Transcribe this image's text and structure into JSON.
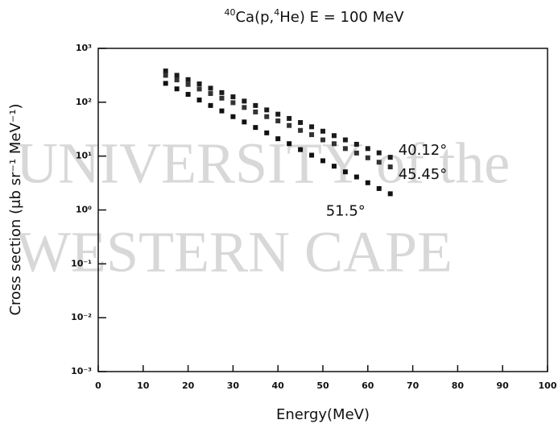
{
  "chart_data": {
    "type": "scatter",
    "title_segments": [
      {
        "text": "40",
        "sup": true
      },
      {
        "text": "Ca(p,",
        "sup": false
      },
      {
        "text": "4",
        "sup": true
      },
      {
        "text": "He)   E  =  100  MeV",
        "sup": false
      }
    ],
    "x_label": "Energy(MeV)",
    "y_label": "Cross section (μb sr⁻¹ MeV⁻¹)",
    "watermark": [
      "UNIVERSITY of the",
      "WESTERN CAPE"
    ],
    "x": [
      15,
      17.5,
      20,
      22.5,
      25,
      27.5,
      30,
      32.5,
      35,
      37.5,
      40,
      42.5,
      45,
      47.5,
      50,
      52.5,
      55,
      57.5,
      60,
      62.5,
      65
    ],
    "series": [
      {
        "name": "40.12°",
        "color": "#1a1a1a",
        "values": [
          380,
          316,
          263,
          219,
          182,
          151,
          126,
          105,
          87,
          72,
          60,
          50,
          42,
          35,
          29,
          24,
          20,
          16.6,
          13.8,
          11.5,
          9.5
        ]
      },
      {
        "name": "45.45°",
        "color": "#333333",
        "values": [
          316,
          260,
          214,
          176,
          145,
          119,
          98,
          80,
          66,
          54,
          45,
          37,
          30,
          25,
          20,
          17,
          13.8,
          11.4,
          9.3,
          7.7,
          6.3
        ]
      },
      {
        "name": "51.5°",
        "color": "#111111",
        "values": [
          224,
          177,
          140,
          110,
          87,
          69,
          54,
          43,
          34,
          27,
          21,
          17,
          13.2,
          10.4,
          8.2,
          6.5,
          5.1,
          4.1,
          3.2,
          2.5,
          2.0
        ]
      }
    ],
    "xlim": [
      0,
      100
    ],
    "xticks": [
      0,
      10,
      20,
      30,
      40,
      50,
      60,
      70,
      80,
      90,
      100
    ],
    "ylim": [
      0.001,
      1000
    ],
    "ylog": true,
    "yticks": [
      {
        "value": 1000,
        "label": "10³"
      },
      {
        "value": 100,
        "label": "10²"
      },
      {
        "value": 10,
        "label": "10¹"
      },
      {
        "value": 1,
        "label": "10⁰"
      },
      {
        "value": 0.1,
        "label": "10⁻¹"
      },
      {
        "value": 0.01,
        "label": "10⁻²"
      },
      {
        "value": 0.001,
        "label": "10⁻³"
      }
    ]
  }
}
